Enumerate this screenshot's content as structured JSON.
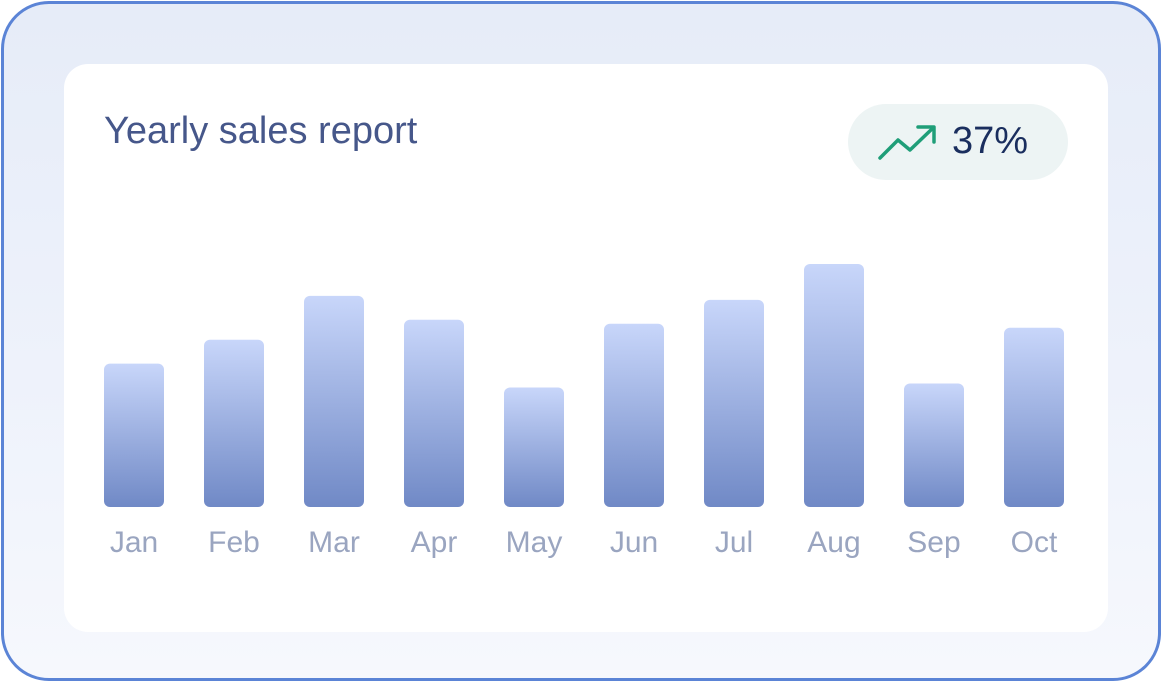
{
  "card": {
    "title": "Yearly sales report"
  },
  "badge": {
    "icon": "trending-up-icon",
    "value": "37%",
    "icon_color": "#1f9e78"
  },
  "colors": {
    "bar_top": "#c8d6fa",
    "bar_bottom": "#7089c6",
    "frame_border": "#5b84d6",
    "title": "#46578a",
    "tick_label": "#9aa5c0"
  },
  "chart_data": {
    "type": "bar",
    "title": "Yearly sales report",
    "categories": [
      "Jan",
      "Feb",
      "Mar",
      "Apr",
      "May",
      "Jun",
      "Jul",
      "Aug",
      "Sep",
      "Oct"
    ],
    "values": [
      36,
      42,
      53,
      47,
      30,
      46,
      52,
      61,
      31,
      45
    ],
    "ylim": [
      0,
      61
    ],
    "grid": false,
    "value_axis_visible": false
  }
}
